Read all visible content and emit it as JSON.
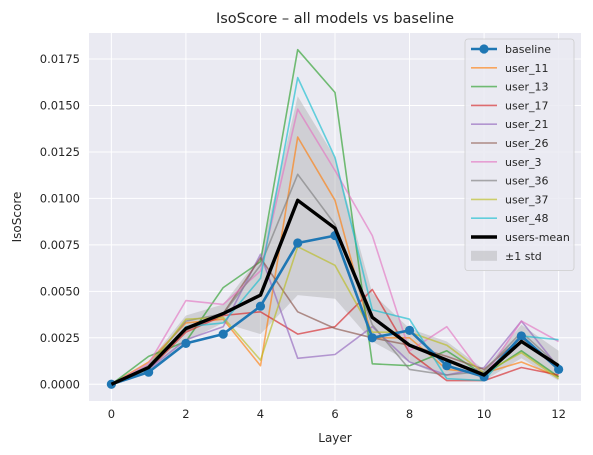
{
  "chart_data": {
    "type": "line",
    "title": "IsoScore – all models vs baseline",
    "xlabel": "Layer",
    "ylabel": "IsoScore",
    "xlim": [
      -0.6,
      12.6
    ],
    "ylim": [
      -0.0009,
      0.0189
    ],
    "xticks": [
      0,
      2,
      4,
      6,
      8,
      10,
      12
    ],
    "yticks": [
      0.0,
      0.0025,
      0.005,
      0.0075,
      0.01,
      0.0125,
      0.015,
      0.0175
    ],
    "ytick_labels": [
      "0.0000",
      "0.0025",
      "0.0050",
      "0.0075",
      "0.0100",
      "0.0125",
      "0.0150",
      "0.0175"
    ],
    "grid": true,
    "legend_position": "top-right",
    "x": [
      0,
      1,
      2,
      3,
      4,
      5,
      6,
      7,
      8,
      9,
      10,
      11,
      12
    ],
    "series": [
      {
        "name": "baseline",
        "color": "#1f77b4",
        "style": "baseline",
        "values": [
          0.0,
          0.00065,
          0.0022,
          0.0027,
          0.0042,
          0.0076,
          0.008,
          0.0025,
          0.0029,
          0.001,
          0.0004,
          0.0026,
          0.0008
        ]
      },
      {
        "name": "user_11",
        "color": "#ff7f0e",
        "style": "user",
        "values": [
          0.0,
          0.0012,
          0.0033,
          0.0035,
          0.001,
          0.0133,
          0.0099,
          0.0025,
          0.0025,
          0.0008,
          0.0006,
          0.0012,
          0.0004
        ]
      },
      {
        "name": "user_13",
        "color": "#2ca02c",
        "style": "user",
        "values": [
          0.0,
          0.0015,
          0.0023,
          0.0052,
          0.0066,
          0.018,
          0.0157,
          0.0011,
          0.001,
          0.0018,
          0.0005,
          0.0018,
          0.0004
        ]
      },
      {
        "name": "user_17",
        "color": "#d62728",
        "style": "user",
        "values": [
          0.0,
          0.0008,
          0.0028,
          0.0037,
          0.0039,
          0.0027,
          0.0031,
          0.0051,
          0.0017,
          0.0002,
          0.0002,
          0.0009,
          0.0005
        ]
      },
      {
        "name": "user_21",
        "color": "#9467bd",
        "style": "user",
        "values": [
          0.0,
          0.0008,
          0.0024,
          0.0031,
          0.007,
          0.0014,
          0.0016,
          0.0031,
          0.0012,
          0.0005,
          0.0009,
          0.0034,
          0.0009
        ]
      },
      {
        "name": "user_26",
        "color": "#8c564b",
        "style": "user",
        "values": [
          0.0,
          0.0009,
          0.0029,
          0.0038,
          0.0068,
          0.0039,
          0.003,
          0.0025,
          0.0021,
          0.0015,
          0.0008,
          0.0025,
          0.0008
        ]
      },
      {
        "name": "user_3",
        "color": "#e377c2",
        "style": "user",
        "values": [
          0.0,
          0.0011,
          0.0045,
          0.0043,
          0.0061,
          0.0148,
          0.0115,
          0.008,
          0.0018,
          0.0031,
          0.0004,
          0.0034,
          0.0023
        ]
      },
      {
        "name": "user_36",
        "color": "#7f7f7f",
        "style": "user",
        "values": [
          0.0,
          0.001,
          0.0034,
          0.0038,
          0.0064,
          0.0113,
          0.0086,
          0.0032,
          0.0008,
          0.0005,
          0.0007,
          0.0028,
          0.001
        ]
      },
      {
        "name": "user_37",
        "color": "#bcbd22",
        "style": "user",
        "values": [
          0.0,
          0.0009,
          0.0035,
          0.0036,
          0.0013,
          0.0074,
          0.0064,
          0.0028,
          0.0028,
          0.0021,
          0.0006,
          0.0017,
          0.0003
        ]
      },
      {
        "name": "user_48",
        "color": "#17becf",
        "style": "user",
        "values": [
          0.0,
          0.0008,
          0.0031,
          0.0033,
          0.0057,
          0.0165,
          0.0122,
          0.004,
          0.0035,
          0.0003,
          0.0002,
          0.0026,
          0.0024
        ]
      },
      {
        "name": "users-mean",
        "color": "#000000",
        "style": "mean",
        "values": [
          0.0,
          0.0009,
          0.003,
          0.0038,
          0.0048,
          0.0099,
          0.0084,
          0.0036,
          0.0021,
          0.0013,
          0.0005,
          0.0023,
          0.001
        ]
      }
    ],
    "band": {
      "name": "±1 std",
      "color": "#b0b0b0",
      "lower": [
        0.0,
        0.0007,
        0.0023,
        0.0033,
        0.0027,
        0.0048,
        0.0046,
        0.0023,
        0.0012,
        0.0003,
        0.0002,
        0.0014,
        0.0002
      ],
      "upper": [
        0.0,
        0.0012,
        0.0037,
        0.0043,
        0.0069,
        0.0155,
        0.0122,
        0.0049,
        0.003,
        0.0023,
        0.0008,
        0.0032,
        0.0018
      ]
    }
  }
}
